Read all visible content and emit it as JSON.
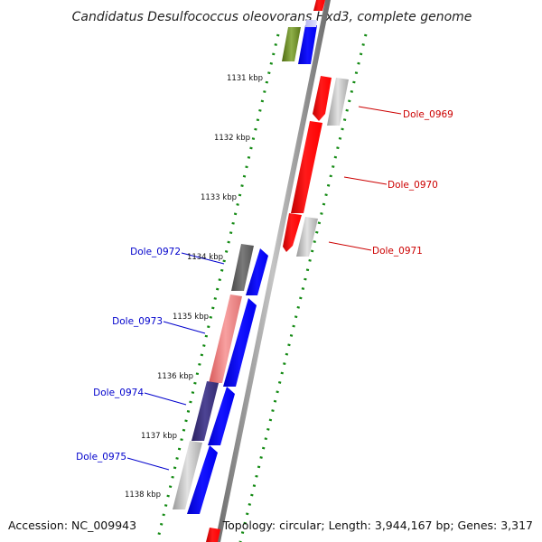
{
  "title": "Candidatus Desulfococcus oleovorans Hxd3, complete genome",
  "accession": "Accession: NC_009943",
  "summary": "Topology: circular; Length: 3,944,167 bp; Genes: 3,317",
  "colors": {
    "forward_strand": "#0000ff",
    "reverse_strand": "#ff0000",
    "backbone": "#888888",
    "tick": "#138a13",
    "label_right": "#cc0000",
    "label_left": "#0000cc"
  },
  "ticks": [
    {
      "label": "1131 kbp"
    },
    {
      "label": "1132 kbp"
    },
    {
      "label": "1133 kbp"
    },
    {
      "label": "1134 kbp"
    },
    {
      "label": "1135 kbp"
    },
    {
      "label": "1136 kbp"
    },
    {
      "label": "1137 kbp"
    },
    {
      "label": "1138 kbp"
    }
  ],
  "gene_labels": [
    {
      "name": "Dole_0969",
      "side": "right"
    },
    {
      "name": "Dole_0970",
      "side": "right"
    },
    {
      "name": "Dole_0971",
      "side": "right"
    },
    {
      "name": "Dole_0972",
      "side": "left"
    },
    {
      "name": "Dole_0973",
      "side": "left"
    },
    {
      "name": "Dole_0974",
      "side": "left"
    },
    {
      "name": "Dole_0975",
      "side": "left"
    }
  ]
}
